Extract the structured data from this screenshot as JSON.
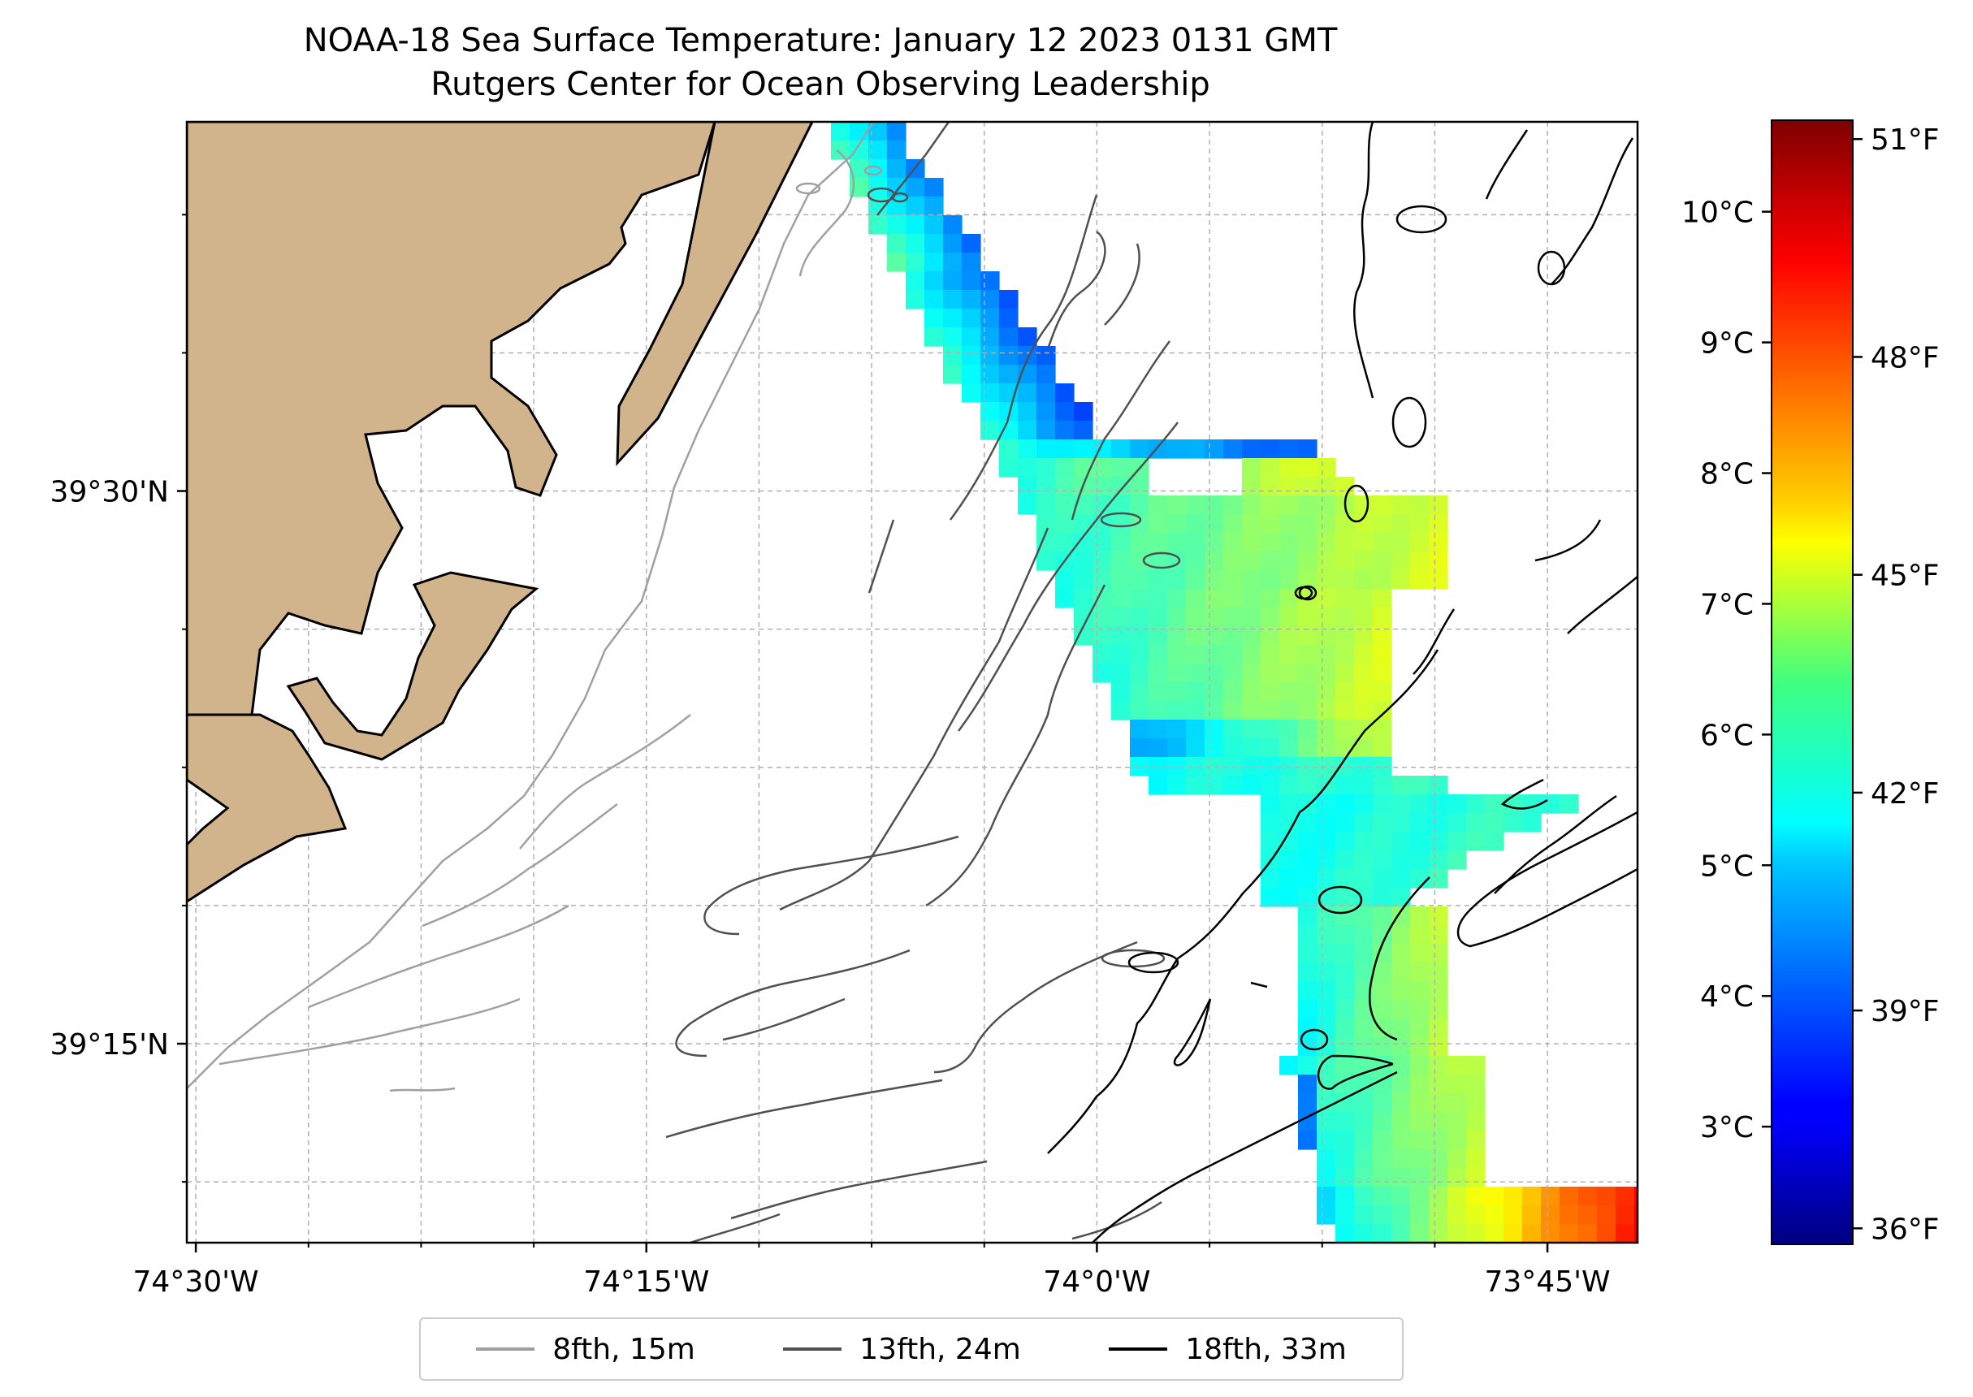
{
  "title": "NOAA-18 Sea Surface Temperature: January 12 2023 0131 GMT",
  "subtitle": "Rutgers Center for Ocean Observing Leadership",
  "map": {
    "lon_ticks": [
      {
        "value": -74.5,
        "label": "74°30'W"
      },
      {
        "value": -74.25,
        "label": "74°15'W"
      },
      {
        "value": -74.0,
        "label": "74°0'W"
      },
      {
        "value": -73.75,
        "label": "73°45'W"
      }
    ],
    "lat_ticks": [
      {
        "value": 39.5,
        "label": "39°30'N"
      },
      {
        "value": 39.25,
        "label": "39°15'N"
      }
    ],
    "extent": {
      "lon": [
        -74.505,
        -73.7
      ],
      "lat": [
        39.16,
        39.667
      ]
    },
    "land_color": "#d2b48c",
    "grid": true
  },
  "colorbar": {
    "celsius": [
      {
        "value": 3,
        "label": "3°C"
      },
      {
        "value": 4,
        "label": "4°C"
      },
      {
        "value": 5,
        "label": "5°C"
      },
      {
        "value": 6,
        "label": "6°C"
      },
      {
        "value": 7,
        "label": "7°C"
      },
      {
        "value": 8,
        "label": "8°C"
      },
      {
        "value": 9,
        "label": "9°C"
      },
      {
        "value": 10,
        "label": "10°C"
      }
    ],
    "fahrenheit": [
      {
        "value": 36,
        "label": "36°F"
      },
      {
        "value": 39,
        "label": "39°F"
      },
      {
        "value": 42,
        "label": "42°F"
      },
      {
        "value": 45,
        "label": "45°F"
      },
      {
        "value": 48,
        "label": "48°F"
      },
      {
        "value": 51,
        "label": "51°F"
      }
    ],
    "range_c": [
      2.1,
      10.7
    ],
    "colormap": "jet"
  },
  "legend": [
    {
      "label": "8fth, 15m",
      "color": "#a0a0a0"
    },
    {
      "label": "13fth, 24m",
      "color": "#505050"
    },
    {
      "label": "18fth, 33m",
      "color": "#000000"
    }
  ]
}
